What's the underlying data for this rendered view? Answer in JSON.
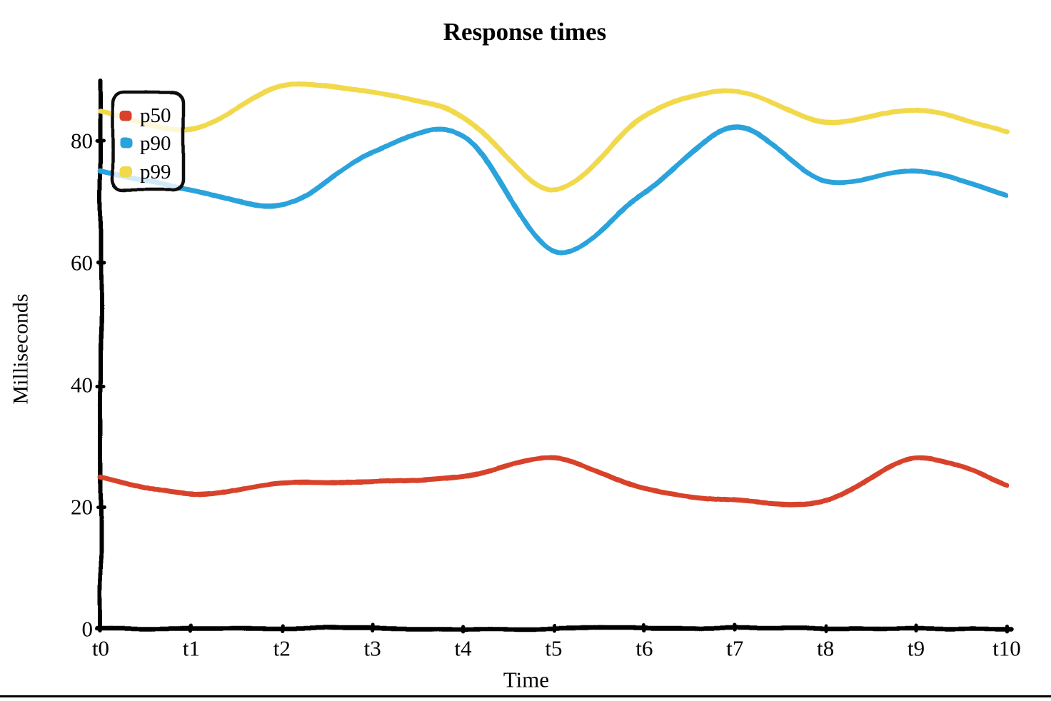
{
  "page": {
    "background_color": "#ffffff",
    "bottom_border_color": "#000000"
  },
  "chart_data": {
    "type": "line",
    "style": "hand-drawn",
    "title": "Response times",
    "xlabel": "Time",
    "ylabel": "Milliseconds",
    "grid": false,
    "legend_position": "top-left",
    "axis_color": "#000000",
    "x_categories": [
      "t0",
      "t1",
      "t2",
      "t3",
      "t4",
      "t5",
      "t6",
      "t7",
      "t8",
      "t9",
      "t10"
    ],
    "y_ticks": [
      "0",
      "20",
      "40",
      "60",
      "80"
    ],
    "ylim": [
      0,
      90
    ],
    "series": [
      {
        "name": "p50",
        "color": "#d8432c",
        "values": [
          25,
          22,
          24,
          24,
          25,
          28,
          23,
          21,
          21,
          28,
          23.5
        ]
      },
      {
        "name": "p90",
        "color": "#2aa3dc",
        "values": [
          75,
          72,
          69.5,
          78,
          81,
          62,
          71.5,
          82,
          73.5,
          75,
          71
        ]
      },
      {
        "name": "p99",
        "color": "#f2d94b",
        "values": [
          85,
          82,
          89,
          88,
          84,
          72,
          84,
          88,
          83,
          85,
          81.5
        ]
      }
    ]
  }
}
